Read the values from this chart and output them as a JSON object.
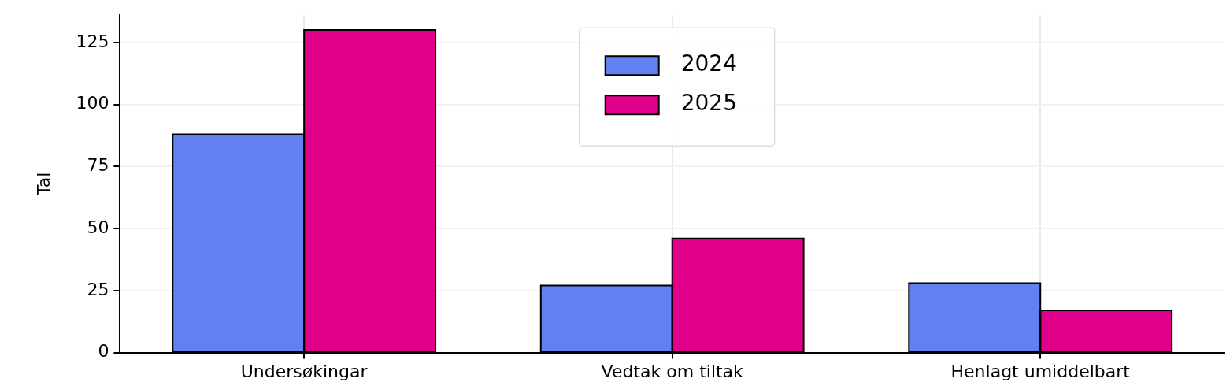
{
  "chart_data": {
    "type": "bar",
    "ylabel": "Tal",
    "categories": [
      "Undersøkingar",
      "Vedtak om tiltak",
      "Henlagt umiddelbart"
    ],
    "series": [
      {
        "name": "2024",
        "color": "#6380f0",
        "values": [
          88,
          27,
          28
        ]
      },
      {
        "name": "2025",
        "color": "#e0008a",
        "values": [
          130,
          46,
          17
        ]
      }
    ],
    "ylim": [
      0,
      136
    ],
    "yticks": [
      0,
      25,
      50,
      75,
      100,
      125
    ],
    "grid": true,
    "legend": "top"
  }
}
